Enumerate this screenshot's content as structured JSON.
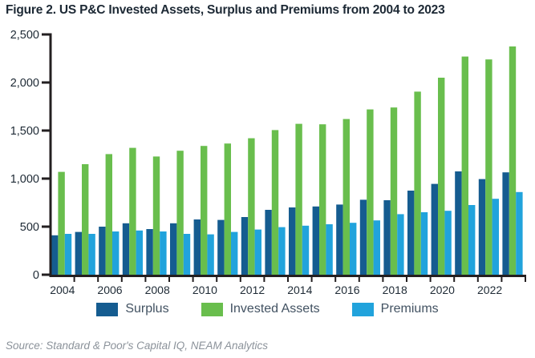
{
  "header": {
    "title": "Figure 2. US P&C Invested Assets, Surplus and Premiums from 2004 to 2023"
  },
  "chart_data": {
    "type": "bar",
    "title": "Figure 2. US P&C Invested Assets, Surplus and Premiums from 2004 to 2023",
    "categories": [
      "2004",
      "2005",
      "2006",
      "2007",
      "2008",
      "2009",
      "2010",
      "2011",
      "2012",
      "2013",
      "2014",
      "2015",
      "2016",
      "2017",
      "2018",
      "2019",
      "2020",
      "2021",
      "2022",
      "2023"
    ],
    "series": [
      {
        "name": "Surplus",
        "color": "#155C90",
        "values": [
          410,
          445,
          500,
          535,
          475,
          535,
          575,
          570,
          600,
          675,
          700,
          710,
          730,
          780,
          775,
          875,
          945,
          1075,
          995,
          1065
        ]
      },
      {
        "name": "Invested Assets",
        "color": "#69BE4D",
        "values": [
          1070,
          1150,
          1255,
          1320,
          1230,
          1290,
          1340,
          1365,
          1420,
          1505,
          1570,
          1565,
          1620,
          1720,
          1740,
          1905,
          2050,
          2270,
          2240,
          2375
        ]
      },
      {
        "name": "Premiums",
        "color": "#21A3DC",
        "values": [
          425,
          425,
          450,
          460,
          450,
          425,
          420,
          445,
          470,
          495,
          510,
          525,
          540,
          565,
          630,
          650,
          665,
          725,
          790,
          860
        ]
      }
    ],
    "xlabel": "",
    "ylabel": "",
    "ylim": [
      0,
      2500
    ],
    "y_ticks": [
      0,
      500,
      1000,
      1500,
      2000,
      2500
    ],
    "y_tick_labels": [
      "0",
      "500",
      "1,000",
      "1,500",
      "2,000",
      "2,500"
    ],
    "x_tick_labels": [
      "2004",
      "2006",
      "2008",
      "2010",
      "2012",
      "2014",
      "2016",
      "2018",
      "2020",
      "2022"
    ],
    "grid": false,
    "legend_position": "bottom"
  },
  "colors": {
    "axis": "#231f20",
    "axis_text": "#1e2a35",
    "background": "#ffffff"
  },
  "footer": {
    "source": "Source: Standard & Poor's Capital IQ, NEAM Analytics"
  }
}
